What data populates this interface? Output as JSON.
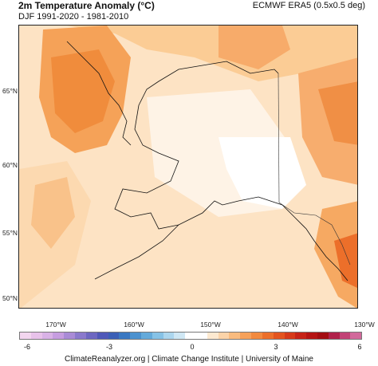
{
  "header": {
    "title": "2m Temperature Anomaly (°C)",
    "subtitle": "DJF 1991-2020 - 1981-2010",
    "source": "ECMWF ERA5 (0.5x0.5 deg)"
  },
  "map": {
    "lat_labels": [
      "65°N",
      "60°N",
      "55°N",
      "50°N"
    ],
    "lon_labels": [
      "170°W",
      "160°W",
      "150°W",
      "140°W",
      "130°W"
    ]
  },
  "colorbar": {
    "tick_labels": [
      "-6",
      "-3",
      "0",
      "3",
      "6"
    ],
    "colors": [
      "#f3d6ef",
      "#e8c2ea",
      "#d9b2e6",
      "#c69de0",
      "#a98bd6",
      "#8a79cc",
      "#6d67c1",
      "#4f58b8",
      "#3b5fb6",
      "#3a78c2",
      "#4c92cf",
      "#64aadb",
      "#86c2e6",
      "#acd6ee",
      "#cfe7f4",
      "#ffffff",
      "#ffffff",
      "#fde9d0",
      "#fbd3a8",
      "#f9bb7f",
      "#f6a15a",
      "#f28a3f",
      "#ec6f2a",
      "#e3541e",
      "#d63a19",
      "#c62317",
      "#b51414",
      "#a30d12",
      "#b0214a",
      "#c24276",
      "#d2699b"
    ]
  },
  "footer": {
    "credit": "ClimateReanalyzer.org | Climate Change Institute | University of Maine"
  }
}
